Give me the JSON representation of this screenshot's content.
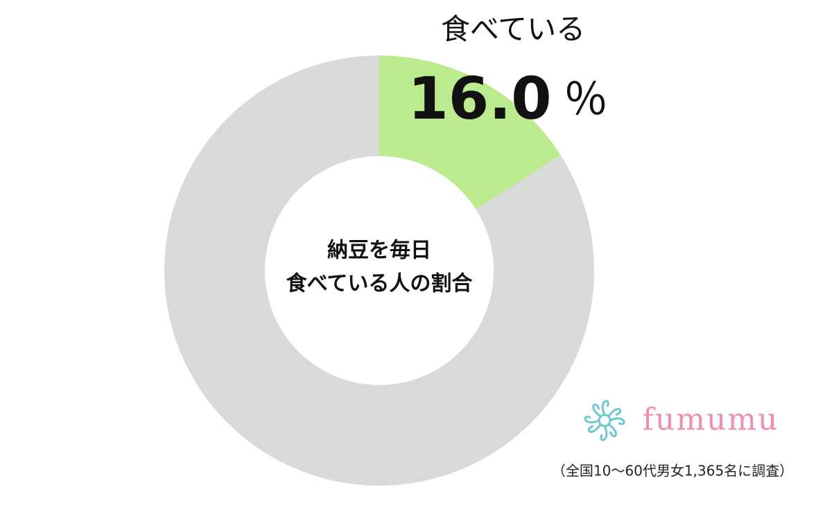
{
  "chart_data": {
    "type": "donut",
    "categories": [
      "食べている",
      null
    ],
    "values": [
      16.0,
      84.0
    ],
    "value_labels": [
      "16.0",
      null
    ],
    "unit": "％",
    "colors": [
      "#bbeb8e",
      "#d9d9d9"
    ],
    "center_text": [
      "納豆を毎日",
      "食べている人の割合"
    ],
    "logo": "fumumu",
    "note": "（全国10〜60代男女1,365名に調査）"
  }
}
